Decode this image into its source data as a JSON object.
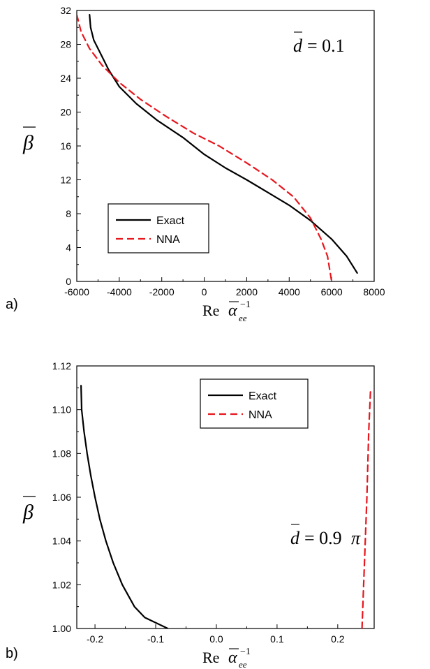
{
  "chart_data": [
    {
      "type": "line",
      "panel_label": "a)",
      "ylabel": "β̄",
      "xlabel": "Re ᾱee⁻¹",
      "annotation": "d̄ = 0.1",
      "xlim": [
        -6000,
        8000
      ],
      "ylim": [
        0,
        32
      ],
      "xticks": [
        -6000,
        -4000,
        -2000,
        0,
        2000,
        4000,
        6000,
        8000
      ],
      "yticks": [
        0,
        4,
        8,
        12,
        16,
        20,
        24,
        28,
        32
      ],
      "legend_position": "lower-left",
      "series": [
        {
          "name": "Exact",
          "color": "#000000",
          "style": "solid",
          "points": [
            [
              -5400,
              31.5
            ],
            [
              -5350,
              30
            ],
            [
              -5200,
              28.5
            ],
            [
              -4900,
              27
            ],
            [
              -4500,
              25
            ],
            [
              -4000,
              23
            ],
            [
              -3200,
              21
            ],
            [
              -2200,
              19
            ],
            [
              -1000,
              17
            ],
            [
              0,
              15
            ],
            [
              1000,
              13.4
            ],
            [
              2000,
              12
            ],
            [
              3000,
              10.5
            ],
            [
              4000,
              9
            ],
            [
              5000,
              7.2
            ],
            [
              6000,
              5
            ],
            [
              6700,
              3
            ],
            [
              7200,
              1
            ]
          ]
        },
        {
          "name": "NNA",
          "color": "#e8161d",
          "style": "dashed",
          "points": [
            [
              -6000,
              31.5
            ],
            [
              -5800,
              29.5
            ],
            [
              -5400,
              27.5
            ],
            [
              -4800,
              25.5
            ],
            [
              -4000,
              23.5
            ],
            [
              -3000,
              21.5
            ],
            [
              -1800,
              19.5
            ],
            [
              -500,
              17.5
            ],
            [
              700,
              16
            ],
            [
              2000,
              14
            ],
            [
              3200,
              12
            ],
            [
              4200,
              10
            ],
            [
              5000,
              7.5
            ],
            [
              5500,
              5
            ],
            [
              5800,
              3
            ],
            [
              6000,
              0
            ]
          ]
        }
      ]
    },
    {
      "type": "line",
      "panel_label": "b)",
      "ylabel": "β̄",
      "xlabel": "Re ᾱee⁻¹",
      "annotation": "d̄ = 0.9π",
      "xlim": [
        -0.23,
        0.26
      ],
      "ylim": [
        1.0,
        1.12
      ],
      "xticks": [
        -0.2,
        -0.1,
        0.0,
        0.1,
        0.2
      ],
      "xtick_labels": [
        "-0.2",
        "-0.1",
        "0.0",
        "0.1",
        "0.2"
      ],
      "yticks": [
        1.0,
        1.02,
        1.04,
        1.06,
        1.08,
        1.1,
        1.12
      ],
      "ytick_labels": [
        "1.00",
        "1.02",
        "1.04",
        "1.06",
        "1.08",
        "1.10",
        "1.12"
      ],
      "legend_position": "upper-center",
      "series": [
        {
          "name": "Exact",
          "color": "#000000",
          "style": "solid",
          "points": [
            [
              -0.223,
              1.111
            ],
            [
              -0.222,
              1.1
            ],
            [
              -0.218,
              1.09
            ],
            [
              -0.213,
              1.08
            ],
            [
              -0.207,
              1.07
            ],
            [
              -0.2,
              1.06
            ],
            [
              -0.192,
              1.05
            ],
            [
              -0.182,
              1.04
            ],
            [
              -0.17,
              1.03
            ],
            [
              -0.155,
              1.02
            ],
            [
              -0.135,
              1.01
            ],
            [
              -0.118,
              1.005
            ],
            [
              -0.08,
              1.0
            ]
          ]
        },
        {
          "name": "NNA",
          "color": "#e8161d",
          "style": "dashed",
          "points": [
            [
              0.24,
              1.0
            ],
            [
              0.244,
              1.03
            ],
            [
              0.248,
              1.06
            ],
            [
              0.251,
              1.09
            ],
            [
              0.254,
              1.109
            ]
          ]
        }
      ]
    }
  ]
}
